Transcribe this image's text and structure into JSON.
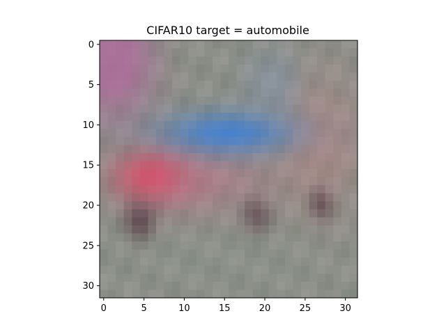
{
  "chart_data": {
    "type": "heatmap",
    "title": "CIFAR10 target = automobile",
    "xlabel": "",
    "ylabel": "",
    "grid": false,
    "xlim": [
      -0.5,
      31.5
    ],
    "ylim": [
      31.5,
      -0.5
    ],
    "x_ticks": [
      0,
      5,
      10,
      15,
      20,
      25,
      30
    ],
    "y_ticks": [
      0,
      5,
      10,
      15,
      20,
      25,
      30
    ],
    "x_tick_labels": [
      "0",
      "5",
      "10",
      "15",
      "20",
      "25",
      "30"
    ],
    "y_tick_labels": [
      "0",
      "5",
      "10",
      "15",
      "20",
      "25",
      "30"
    ],
    "image_size": [
      32,
      32
    ],
    "image_content": "blurry low-resolution image of a car: blue windshield/roof center, red/pink body left, dark wheels at bottom, gray background",
    "colors": {
      "background": "#8c8f88",
      "body_red": "#e0425e",
      "glass_blue": "#3d7fd6",
      "wheel_dark": "#4a2a3a",
      "corner_magenta": "#b06a9c"
    }
  }
}
